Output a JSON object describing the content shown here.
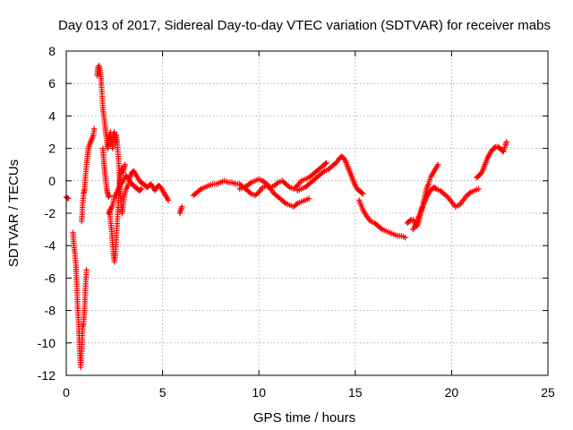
{
  "chart_data": {
    "type": "scatter",
    "title": "Day 013 of 2017, Sidereal Day-to-day VTEC variation (SDTVAR) for receiver mabs",
    "xlabel": "GPS time / hours",
    "ylabel": "SDTVAR / TECUs",
    "xlim": [
      0,
      25
    ],
    "ylim": [
      -12,
      8
    ],
    "xticks": [
      0,
      5,
      10,
      15,
      20,
      25
    ],
    "yticks": [
      -12,
      -10,
      -8,
      -6,
      -4,
      -2,
      0,
      2,
      4,
      6,
      8
    ],
    "xtick_labels": [
      "0",
      "5",
      "10",
      "15",
      "20",
      "25"
    ],
    "ytick_labels": [
      "-12",
      "-10",
      "-8",
      "-6",
      "-4",
      "-2",
      "0",
      "2",
      "4",
      "6",
      "8"
    ],
    "grid": true,
    "marker": "+",
    "marker_color": "#ff0000",
    "series": [
      {
        "name": "mabs",
        "segments": [
          [
            [
              0.0,
              -1.0
            ],
            [
              0.1,
              -1.1
            ]
          ],
          [
            [
              0.35,
              -3.2
            ],
            [
              0.4,
              -4.0
            ],
            [
              0.45,
              -4.5
            ],
            [
              0.5,
              -5.2
            ],
            [
              0.55,
              -6.5
            ],
            [
              0.6,
              -8.0
            ],
            [
              0.65,
              -9.0
            ],
            [
              0.7,
              -10.5
            ],
            [
              0.75,
              -11.5
            ],
            [
              0.8,
              -10.5
            ],
            [
              0.85,
              -9.0
            ],
            [
              0.9,
              -8.8
            ],
            [
              0.95,
              -8.0
            ],
            [
              1.0,
              -6.5
            ],
            [
              1.05,
              -5.5
            ]
          ],
          [
            [
              0.8,
              -2.5
            ],
            [
              0.85,
              -1.5
            ],
            [
              0.9,
              -0.8
            ],
            [
              0.95,
              -0.5
            ],
            [
              1.0,
              0.3
            ],
            [
              1.05,
              1.0
            ],
            [
              1.1,
              1.5
            ],
            [
              1.15,
              2.0
            ],
            [
              1.2,
              2.2
            ],
            [
              1.3,
              2.5
            ],
            [
              1.4,
              2.8
            ],
            [
              1.45,
              3.2
            ]
          ],
          [
            [
              1.6,
              6.5
            ],
            [
              1.65,
              7.0
            ],
            [
              1.7,
              7.1
            ],
            [
              1.75,
              6.8
            ],
            [
              1.8,
              6.3
            ],
            [
              1.85,
              5.5
            ],
            [
              1.9,
              4.5
            ],
            [
              1.95,
              4.0
            ],
            [
              2.0,
              3.5
            ],
            [
              2.05,
              3.0
            ],
            [
              2.1,
              2.5
            ],
            [
              2.15,
              2.0
            ],
            [
              2.2,
              2.3
            ],
            [
              2.25,
              2.8
            ],
            [
              2.3,
              3.0
            ]
          ],
          [
            [
              1.9,
              2.0
            ],
            [
              1.95,
              1.2
            ],
            [
              2.0,
              0.6
            ],
            [
              2.05,
              0.0
            ],
            [
              2.1,
              -0.5
            ],
            [
              2.15,
              -0.8
            ],
            [
              2.2,
              -1.0
            ],
            [
              2.25,
              -0.9
            ]
          ],
          [
            [
              2.25,
              -1.8
            ],
            [
              2.3,
              -2.5
            ],
            [
              2.35,
              -3.0
            ],
            [
              2.4,
              -3.8
            ],
            [
              2.45,
              -4.5
            ],
            [
              2.5,
              -5.0
            ],
            [
              2.55,
              -4.5
            ],
            [
              2.6,
              -3.5
            ],
            [
              2.65,
              -2.5
            ],
            [
              2.7,
              -1.5
            ],
            [
              2.75,
              -0.5
            ],
            [
              2.8,
              0.2
            ],
            [
              2.85,
              0.6
            ],
            [
              2.9,
              0.8
            ],
            [
              2.95,
              0.5
            ],
            [
              3.0,
              0.8
            ],
            [
              3.05,
              1.0
            ]
          ],
          [
            [
              2.3,
              2.8
            ],
            [
              2.35,
              2.5
            ],
            [
              2.4,
              2.0
            ],
            [
              2.45,
              2.9
            ],
            [
              2.5,
              3.0
            ],
            [
              2.55,
              2.4
            ],
            [
              2.6,
              2.8
            ],
            [
              2.65,
              2.2
            ],
            [
              2.7,
              1.5
            ],
            [
              2.75,
              0.5
            ],
            [
              2.8,
              -0.8
            ],
            [
              2.85,
              -1.5
            ],
            [
              2.9,
              -2.0
            ],
            [
              2.95,
              -1.5
            ],
            [
              3.0,
              -1.0
            ],
            [
              3.1,
              -0.5
            ],
            [
              3.2,
              -0.3
            ],
            [
              3.3,
              0.2
            ],
            [
              3.4,
              0.5
            ],
            [
              3.5,
              0.6
            ],
            [
              3.6,
              0.4
            ],
            [
              3.7,
              0.2
            ],
            [
              3.8,
              0.0
            ],
            [
              3.9,
              -0.1
            ],
            [
              4.0,
              -0.2
            ],
            [
              4.1,
              -0.3
            ],
            [
              4.2,
              -0.4
            ],
            [
              4.3,
              -0.3
            ],
            [
              4.4,
              -0.2
            ],
            [
              4.5,
              -0.4
            ],
            [
              4.6,
              -0.6
            ],
            [
              4.7,
              -0.4
            ],
            [
              4.8,
              -0.3
            ],
            [
              4.9,
              -0.4
            ],
            [
              5.0,
              -0.6
            ],
            [
              5.1,
              -0.8
            ],
            [
              5.2,
              -1.0
            ],
            [
              5.3,
              -1.2
            ]
          ],
          [
            [
              2.2,
              -2.0
            ],
            [
              2.3,
              -1.8
            ],
            [
              2.4,
              -1.5
            ],
            [
              2.5,
              -1.0
            ],
            [
              2.6,
              -0.8
            ],
            [
              2.7,
              -0.5
            ],
            [
              2.8,
              -0.3
            ],
            [
              2.9,
              -0.1
            ],
            [
              3.0,
              0.1
            ],
            [
              3.1,
              0.3
            ],
            [
              3.2,
              0.2
            ],
            [
              3.3,
              0.0
            ],
            [
              3.4,
              -0.2
            ],
            [
              3.5,
              -0.3
            ],
            [
              3.6,
              -0.4
            ],
            [
              3.7,
              -0.5
            ],
            [
              3.8,
              -0.6
            ],
            [
              3.9,
              -0.5
            ]
          ],
          [
            [
              5.9,
              -2.0
            ],
            [
              5.95,
              -1.8
            ],
            [
              6.0,
              -1.6
            ]
          ],
          [
            [
              6.6,
              -0.9
            ],
            [
              6.8,
              -0.7
            ],
            [
              7.0,
              -0.5
            ],
            [
              7.2,
              -0.4
            ],
            [
              7.4,
              -0.3
            ],
            [
              7.6,
              -0.2
            ],
            [
              7.8,
              -0.2
            ],
            [
              8.0,
              -0.1
            ],
            [
              8.2,
              0.0
            ],
            [
              8.4,
              -0.1
            ],
            [
              8.6,
              -0.1
            ],
            [
              8.8,
              -0.2
            ],
            [
              9.0,
              -0.2
            ],
            [
              9.2,
              -0.4
            ],
            [
              9.4,
              -0.6
            ],
            [
              9.6,
              -0.8
            ],
            [
              9.8,
              -0.9
            ],
            [
              10.0,
              -0.7
            ],
            [
              10.2,
              -0.4
            ],
            [
              10.4,
              -0.3
            ],
            [
              10.6,
              -0.5
            ],
            [
              10.8,
              -0.8
            ],
            [
              11.0,
              -1.0
            ],
            [
              11.2,
              -1.2
            ],
            [
              11.4,
              -1.4
            ],
            [
              11.6,
              -1.5
            ],
            [
              11.8,
              -1.6
            ],
            [
              12.0,
              -1.4
            ],
            [
              12.2,
              -1.3
            ],
            [
              12.4,
              -1.2
            ],
            [
              12.6,
              -1.1
            ]
          ],
          [
            [
              9.0,
              -0.5
            ],
            [
              9.2,
              -0.4
            ],
            [
              9.4,
              -0.3
            ],
            [
              9.6,
              -0.1
            ],
            [
              9.8,
              0.0
            ],
            [
              10.0,
              0.1
            ],
            [
              10.2,
              0.0
            ],
            [
              10.4,
              -0.2
            ],
            [
              10.6,
              -0.4
            ],
            [
              10.8,
              -0.3
            ],
            [
              11.0,
              -0.1
            ],
            [
              11.2,
              0.0
            ],
            [
              11.4,
              -0.2
            ],
            [
              11.6,
              -0.4
            ],
            [
              11.8,
              -0.5
            ],
            [
              12.0,
              -0.3
            ],
            [
              12.2,
              0.0
            ],
            [
              12.4,
              0.1
            ],
            [
              12.6,
              0.2
            ],
            [
              12.8,
              0.4
            ],
            [
              13.0,
              0.6
            ],
            [
              13.2,
              0.8
            ],
            [
              13.4,
              1.0
            ],
            [
              13.5,
              1.1
            ]
          ],
          [
            [
              12.0,
              -0.6
            ],
            [
              12.2,
              -0.5
            ],
            [
              12.4,
              -0.4
            ],
            [
              12.6,
              -0.2
            ],
            [
              12.8,
              0.0
            ],
            [
              13.0,
              0.2
            ],
            [
              13.2,
              0.4
            ],
            [
              13.4,
              0.6
            ],
            [
              13.6,
              0.7
            ],
            [
              13.8,
              0.9
            ],
            [
              14.0,
              1.1
            ],
            [
              14.2,
              1.4
            ],
            [
              14.3,
              1.5
            ],
            [
              14.4,
              1.4
            ],
            [
              14.5,
              1.2
            ],
            [
              14.6,
              0.9
            ],
            [
              14.7,
              0.6
            ],
            [
              14.8,
              0.3
            ],
            [
              14.9,
              0.0
            ],
            [
              15.0,
              -0.3
            ],
            [
              15.1,
              -0.5
            ],
            [
              15.2,
              -0.6
            ],
            [
              15.3,
              -0.7
            ],
            [
              15.4,
              -0.8
            ]
          ],
          [
            [
              15.2,
              -1.2
            ],
            [
              15.4,
              -1.8
            ],
            [
              15.6,
              -2.2
            ],
            [
              15.8,
              -2.5
            ],
            [
              16.0,
              -2.6
            ],
            [
              16.2,
              -2.8
            ],
            [
              16.4,
              -3.0
            ],
            [
              16.6,
              -3.1
            ],
            [
              16.8,
              -3.2
            ],
            [
              17.0,
              -3.3
            ],
            [
              17.2,
              -3.4
            ],
            [
              17.4,
              -3.4
            ],
            [
              17.6,
              -3.5
            ]
          ],
          [
            [
              17.7,
              -2.6
            ],
            [
              17.8,
              -2.5
            ],
            [
              17.9,
              -2.4
            ],
            [
              18.0,
              -2.4
            ],
            [
              18.1,
              -2.6
            ],
            [
              18.2,
              -2.8
            ],
            [
              18.3,
              -2.5
            ],
            [
              18.4,
              -2.0
            ],
            [
              18.5,
              -1.5
            ],
            [
              18.6,
              -1.0
            ],
            [
              18.7,
              -0.5
            ],
            [
              18.8,
              -0.2
            ],
            [
              18.9,
              0.2
            ],
            [
              19.0,
              0.4
            ],
            [
              19.1,
              0.6
            ],
            [
              19.2,
              0.8
            ],
            [
              19.3,
              1.0
            ]
          ],
          [
            [
              18.0,
              -3.0
            ],
            [
              18.1,
              -2.8
            ],
            [
              18.2,
              -2.5
            ],
            [
              18.3,
              -2.2
            ],
            [
              18.4,
              -1.9
            ],
            [
              18.5,
              -1.6
            ],
            [
              18.6,
              -1.3
            ],
            [
              18.7,
              -1.0
            ],
            [
              18.8,
              -0.8
            ],
            [
              18.9,
              -0.6
            ],
            [
              19.0,
              -0.5
            ],
            [
              19.1,
              -0.4
            ],
            [
              19.2,
              -0.5
            ],
            [
              19.4,
              -0.6
            ],
            [
              19.6,
              -0.8
            ],
            [
              19.8,
              -1.0
            ],
            [
              20.0,
              -1.3
            ],
            [
              20.2,
              -1.6
            ],
            [
              20.4,
              -1.5
            ],
            [
              20.6,
              -1.2
            ],
            [
              20.8,
              -0.9
            ],
            [
              21.0,
              -0.7
            ],
            [
              21.2,
              -0.6
            ],
            [
              21.4,
              -0.5
            ]
          ],
          [
            [
              21.3,
              0.2
            ],
            [
              21.4,
              0.3
            ],
            [
              21.5,
              0.4
            ],
            [
              21.6,
              0.6
            ],
            [
              21.7,
              0.9
            ],
            [
              21.8,
              1.2
            ],
            [
              21.9,
              1.5
            ],
            [
              22.0,
              1.7
            ],
            [
              22.1,
              1.9
            ],
            [
              22.2,
              2.0
            ],
            [
              22.3,
              2.1
            ],
            [
              22.4,
              2.1
            ],
            [
              22.5,
              2.0
            ],
            [
              22.6,
              1.9
            ],
            [
              22.7,
              1.8
            ],
            [
              22.8,
              2.2
            ],
            [
              22.85,
              2.4
            ]
          ]
        ]
      }
    ]
  }
}
